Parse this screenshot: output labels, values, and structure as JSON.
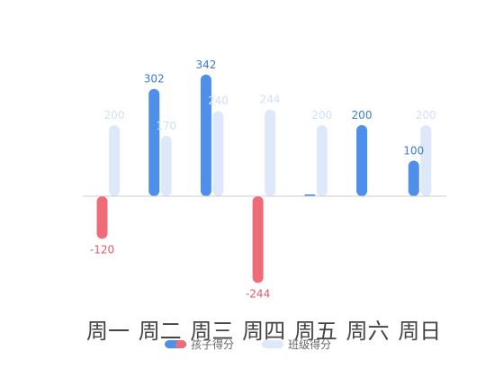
{
  "chart_data": {
    "type": "bar",
    "categories": [
      "周一",
      "周二",
      "周三",
      "周四",
      "周五",
      "周六",
      "周日"
    ],
    "series": [
      {
        "name": "孩子得分",
        "values": [
          -120,
          302,
          342,
          -244,
          0,
          200,
          100
        ],
        "labels": [
          "-120",
          "302",
          "342",
          "-244",
          "",
          "200",
          "100"
        ]
      },
      {
        "name": "班级得分",
        "values": [
          200,
          170,
          240,
          244,
          200,
          0,
          200
        ],
        "labels": [
          "200",
          "170",
          "240",
          "244",
          "200",
          "",
          "200"
        ]
      }
    ],
    "legend": "bottom-center",
    "grid": false,
    "colors": {
      "child_positive": "#4d8fea",
      "child_negative": "#ef6b78",
      "class": "#dde9fb",
      "positive_label": "#3a7bd5",
      "negative_label": "#e25a68",
      "class_label": "#cfe0f8",
      "axis": "#cccccc"
    }
  }
}
